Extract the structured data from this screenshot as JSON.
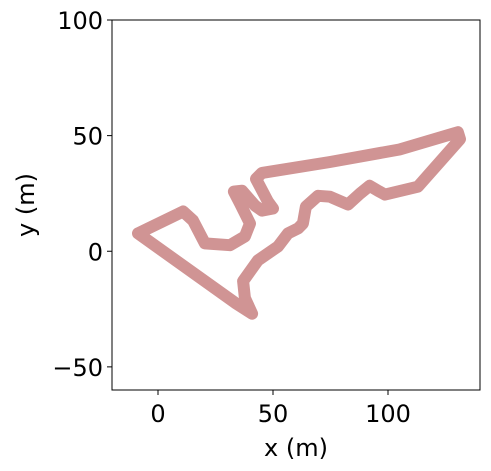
{
  "chart_data": {
    "type": "line",
    "x_label": "x (m)",
    "y_label": "y (m)",
    "x": [
      -8.7,
      10.9,
      15.2,
      20.4,
      31.3,
      37.8,
      40,
      35.7,
      33,
      36.5,
      42.2,
      45.2,
      50,
      47.8,
      42.6,
      45.2,
      74.8,
      105,
      130.4,
      131.3,
      113,
      98.7,
      95.6,
      92,
      87.8,
      82.6,
      74.8,
      69.6,
      64.3,
      63,
      60.9,
      56.5,
      52.2,
      43.5,
      37,
      37.8,
      40.9,
      33.5,
      -8.7
    ],
    "values": [
      7.7,
      17.2,
      13.3,
      3.4,
      2.6,
      6.4,
      12,
      20.6,
      25.8,
      26.2,
      19.7,
      17.6,
      18.5,
      21.5,
      31.3,
      33.9,
      38.6,
      44,
      51.5,
      48.5,
      27.9,
      24.5,
      26.2,
      28.3,
      24.9,
      20.2,
      23.6,
      24,
      19.3,
      12,
      9.9,
      7.7,
      2.1,
      -3.9,
      -12.9,
      -20.2,
      -27,
      -22.3,
      7.7
    ],
    "color": "#d09494",
    "xlim": [
      -20,
      140
    ],
    "ylim": [
      -60,
      100
    ],
    "xticks": [
      0,
      50,
      100
    ],
    "yticks": [
      {
        "value": -50,
        "label": "−50"
      },
      0,
      50,
      100
    ]
  }
}
